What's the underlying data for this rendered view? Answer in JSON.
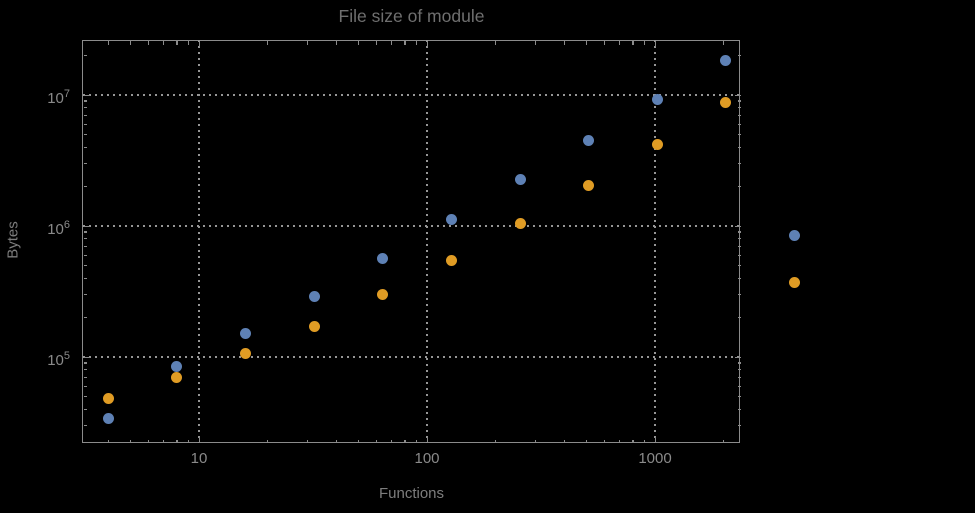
{
  "chart_data": {
    "type": "scatter",
    "title": "File size of module",
    "xlabel": "Functions",
    "ylabel": "Bytes",
    "x_scale": "log",
    "y_scale": "log",
    "grid": "dotted",
    "legend": "none",
    "axis_ranges": {
      "x": [
        3.1,
        2400
      ],
      "y": [
        22000,
        26000000
      ]
    },
    "x": [
      4,
      8,
      16,
      32,
      64,
      128,
      256,
      512,
      1024,
      2048,
      4096
    ],
    "series": [
      {
        "name": "blue",
        "color": "#5e81b5",
        "values": [
          34000,
          84000,
          150000,
          290000,
          560000,
          1120000,
          2250000,
          4500000,
          9200000,
          18500000,
          840000
        ]
      },
      {
        "name": "orange",
        "color": "#e09c24",
        "values": [
          48000,
          70000,
          106000,
          170000,
          300000,
          550000,
          1050000,
          2050000,
          4200000,
          8700000,
          370000
        ]
      }
    ],
    "x_ticks": {
      "values": [
        10,
        100,
        1000
      ],
      "labels": [
        "10",
        "100",
        "1000"
      ]
    },
    "y_ticks": {
      "values": [
        100000,
        1000000,
        10000000
      ],
      "base": "10",
      "exponents": [
        "5",
        "6",
        "7"
      ]
    }
  },
  "colors": {
    "background": "#000000",
    "frame": "#8b8b8b",
    "grid": "#969696",
    "tick_label": "#8a8a8a",
    "title_text": "#6f6f6f",
    "point_blue": "#5e81b5",
    "point_orange": "#e09c24"
  }
}
